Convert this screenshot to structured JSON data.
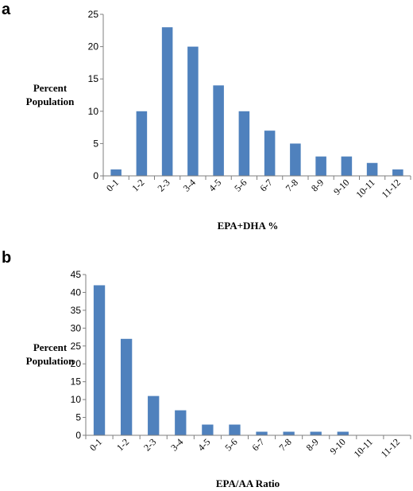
{
  "chart_data": [
    {
      "type": "bar",
      "panel_label": "a",
      "title": "",
      "xlabel": "EPA+DHA %",
      "ylabel_lines": [
        "Percent",
        "Population"
      ],
      "categories": [
        "0-1",
        "1-2",
        "2-3",
        "3-4",
        "4-5",
        "5-6",
        "6-7",
        "7-8",
        "8-9",
        "9-10",
        "10-11",
        "11-12"
      ],
      "values": [
        1,
        10,
        23,
        20,
        14,
        10,
        7,
        5,
        3,
        3,
        2,
        1
      ],
      "ylim": [
        0,
        25
      ],
      "yticks": [
        0,
        5,
        10,
        15,
        20,
        25
      ],
      "grid": false,
      "legend": "none",
      "bar_color": "#4f81bd"
    },
    {
      "type": "bar",
      "panel_label": "b",
      "title": "",
      "xlabel": "EPA/AA Ratio",
      "ylabel_lines": [
        "Percent",
        "Population"
      ],
      "categories": [
        "0-1",
        "1-2",
        "2-3",
        "3-4",
        "4-5",
        "5-6",
        "6-7",
        "7-8",
        "8-9",
        "9-10",
        "10-11",
        "11-12"
      ],
      "values": [
        42,
        27,
        11,
        7,
        3,
        3,
        1,
        1,
        1,
        1,
        0,
        0
      ],
      "ylim": [
        0,
        45
      ],
      "yticks": [
        0,
        5,
        10,
        15,
        20,
        25,
        30,
        35,
        40,
        45
      ],
      "grid": false,
      "legend": "none",
      "bar_color": "#4f81bd"
    }
  ]
}
